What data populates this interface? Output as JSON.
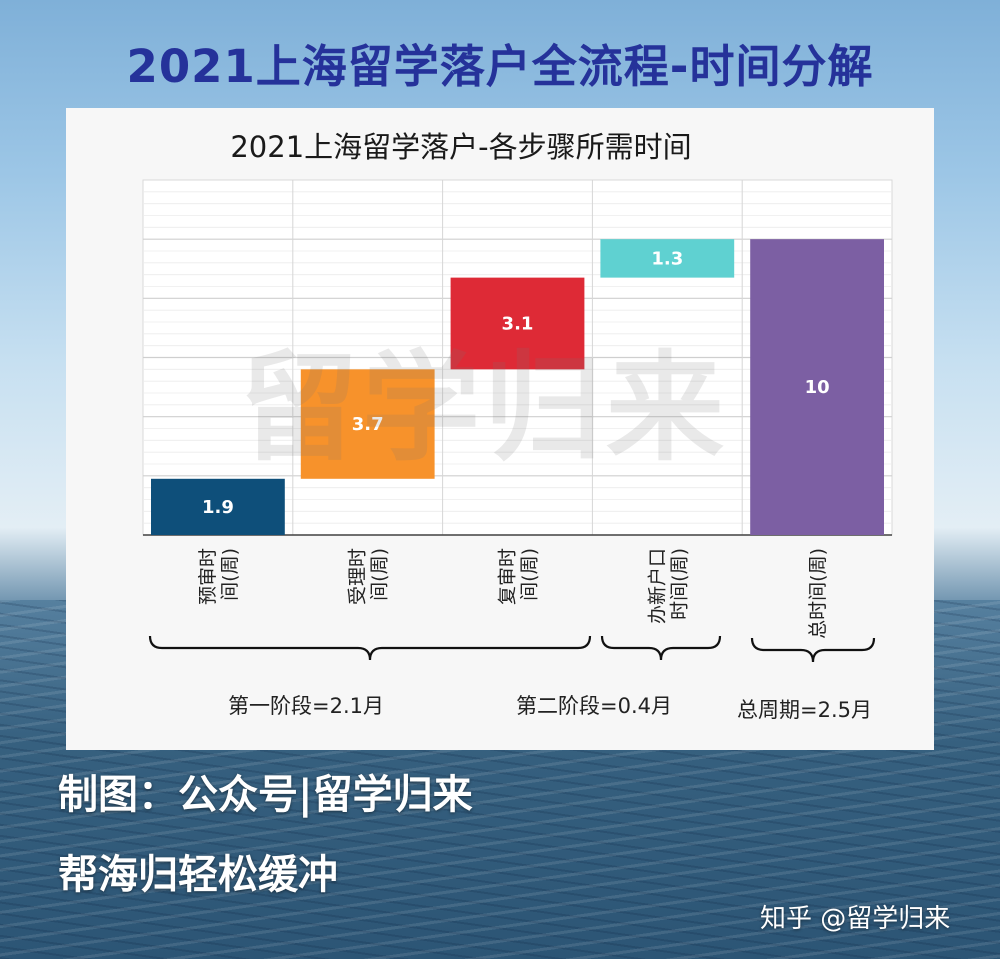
{
  "page_title": "2021上海留学落户全流程-时间分解",
  "watermark": "留学归来",
  "phases": {
    "phase1": "第一阶段=2.1月",
    "phase2": "第二阶段=0.4月",
    "total": "总周期=2.5月"
  },
  "credits": {
    "line1": "制图：公众号|留学归来",
    "line2": "帮海归轻松缓冲"
  },
  "zhihu": "知乎 @留学归来",
  "chart_data": {
    "type": "waterfall",
    "title": "2021上海留学落户-各步骤所需时间",
    "categories": [
      [
        "预审时",
        "间(周)"
      ],
      [
        "受理时",
        "间(周)"
      ],
      [
        "复审时",
        "间(周)"
      ],
      [
        "办新户口",
        "时间(周)"
      ],
      [
        "总时间(周)"
      ]
    ],
    "values": [
      1.9,
      3.7,
      3.1,
      1.3,
      10
    ],
    "value_labels": [
      "1.9",
      "3.7",
      "3.1",
      "1.3",
      "10"
    ],
    "colors": [
      "#0e4f7a",
      "#f7922b",
      "#de2a36",
      "#5fd1d1",
      "#7c5fa3"
    ],
    "is_total": [
      false,
      false,
      false,
      false,
      true
    ],
    "ylim": [
      0,
      12
    ],
    "grid": true
  }
}
